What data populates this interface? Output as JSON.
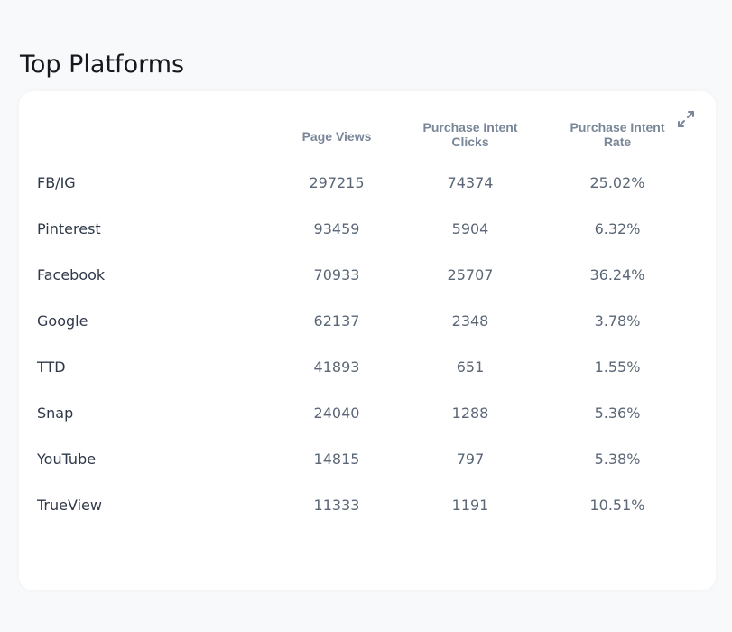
{
  "title": "Top Platforms",
  "table": {
    "headers": {
      "page_views": "Page Views",
      "clicks_line1": "Purchase Intent",
      "clicks_line2": "Clicks",
      "rate_line1": "Purchase Intent",
      "rate_line2": "Rate"
    },
    "rows": [
      {
        "platform": "FB/IG",
        "page_views": "297215",
        "clicks": "74374",
        "rate": "25.02%"
      },
      {
        "platform": "Pinterest",
        "page_views": "93459",
        "clicks": "5904",
        "rate": "6.32%"
      },
      {
        "platform": "Facebook",
        "page_views": "70933",
        "clicks": "25707",
        "rate": "36.24%"
      },
      {
        "platform": "Google",
        "page_views": "62137",
        "clicks": "2348",
        "rate": "3.78%"
      },
      {
        "platform": "TTD",
        "page_views": "41893",
        "clicks": "651",
        "rate": "1.55%"
      },
      {
        "platform": "Snap",
        "page_views": "24040",
        "clicks": "1288",
        "rate": "5.36%"
      },
      {
        "platform": "YouTube",
        "page_views": "14815",
        "clicks": "797",
        "rate": "5.38%"
      },
      {
        "platform": "TrueView",
        "page_views": "11333",
        "clicks": "1191",
        "rate": "10.51%"
      }
    ]
  },
  "icons": {
    "expand": "expand-icon"
  }
}
